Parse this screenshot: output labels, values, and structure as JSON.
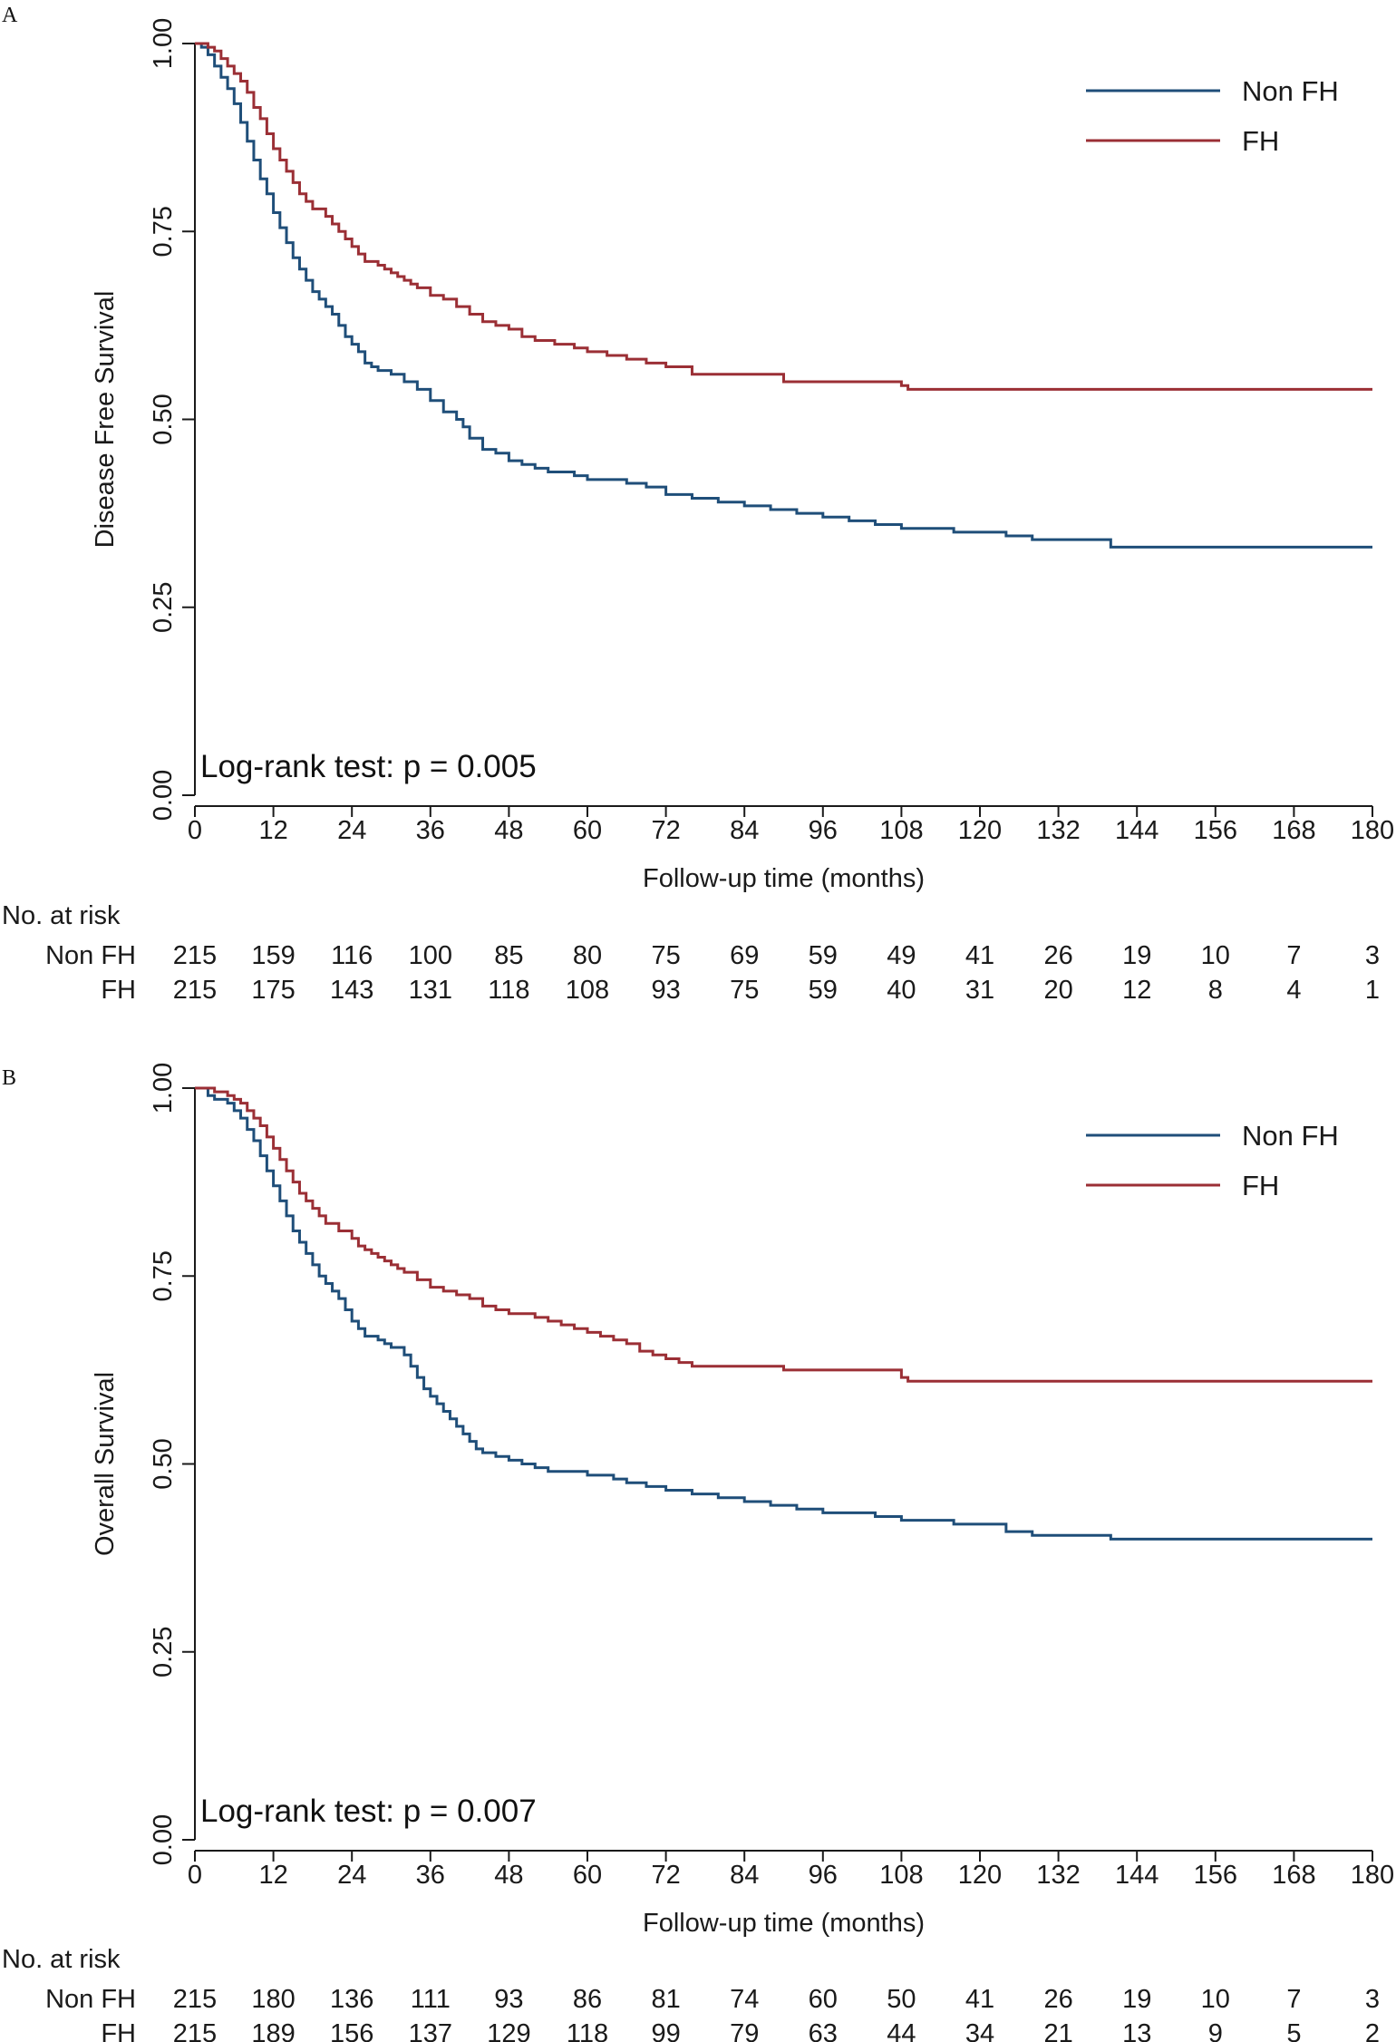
{
  "chart_data": [
    {
      "panel_label": "A",
      "type": "line",
      "subtype": "kaplan-meier",
      "ylabel": "Disease Free Survival",
      "xlabel": "Follow-up time (months)",
      "xlim": [
        0,
        180
      ],
      "ylim": [
        0,
        1
      ],
      "x_ticks": [
        "0",
        "12",
        "24",
        "36",
        "48",
        "60",
        "72",
        "84",
        "96",
        "108",
        "120",
        "132",
        "144",
        "156",
        "168",
        "180"
      ],
      "y_ticks": [
        "0.00",
        "0.25",
        "0.50",
        "0.75",
        "1.00"
      ],
      "annotation": "Log-rank test: p = 0.005",
      "legend": [
        "Non FH",
        "FH"
      ],
      "series": [
        {
          "name": "Non FH",
          "color": "#1f4e79",
          "points": [
            [
              0,
              1.0
            ],
            [
              1,
              0.995
            ],
            [
              2,
              0.985
            ],
            [
              3,
              0.97
            ],
            [
              4,
              0.955
            ],
            [
              5,
              0.94
            ],
            [
              6,
              0.92
            ],
            [
              7,
              0.895
            ],
            [
              8,
              0.87
            ],
            [
              9,
              0.845
            ],
            [
              10,
              0.82
            ],
            [
              11,
              0.8
            ],
            [
              12,
              0.775
            ],
            [
              13,
              0.755
            ],
            [
              14,
              0.735
            ],
            [
              15,
              0.715
            ],
            [
              16,
              0.7
            ],
            [
              17,
              0.685
            ],
            [
              18,
              0.67
            ],
            [
              19,
              0.66
            ],
            [
              20,
              0.65
            ],
            [
              21,
              0.64
            ],
            [
              22,
              0.625
            ],
            [
              23,
              0.61
            ],
            [
              24,
              0.6
            ],
            [
              25,
              0.59
            ],
            [
              26,
              0.575
            ],
            [
              27,
              0.57
            ],
            [
              28,
              0.565
            ],
            [
              30,
              0.56
            ],
            [
              32,
              0.55
            ],
            [
              34,
              0.54
            ],
            [
              36,
              0.525
            ],
            [
              38,
              0.51
            ],
            [
              40,
              0.5
            ],
            [
              41,
              0.49
            ],
            [
              42,
              0.475
            ],
            [
              44,
              0.46
            ],
            [
              46,
              0.455
            ],
            [
              48,
              0.445
            ],
            [
              50,
              0.44
            ],
            [
              52,
              0.435
            ],
            [
              54,
              0.43
            ],
            [
              58,
              0.425
            ],
            [
              60,
              0.42
            ],
            [
              66,
              0.415
            ],
            [
              69,
              0.41
            ],
            [
              72,
              0.4
            ],
            [
              76,
              0.395
            ],
            [
              80,
              0.39
            ],
            [
              84,
              0.385
            ],
            [
              88,
              0.38
            ],
            [
              92,
              0.375
            ],
            [
              96,
              0.37
            ],
            [
              100,
              0.365
            ],
            [
              104,
              0.36
            ],
            [
              108,
              0.355
            ],
            [
              116,
              0.35
            ],
            [
              124,
              0.345
            ],
            [
              128,
              0.34
            ],
            [
              140,
              0.33
            ],
            [
              180,
              0.33
            ]
          ]
        },
        {
          "name": "FH",
          "color": "#9b2f35",
          "points": [
            [
              0,
              1.0
            ],
            [
              2,
              0.995
            ],
            [
              3,
              0.99
            ],
            [
              4,
              0.98
            ],
            [
              5,
              0.97
            ],
            [
              6,
              0.96
            ],
            [
              7,
              0.95
            ],
            [
              8,
              0.935
            ],
            [
              9,
              0.915
            ],
            [
              10,
              0.9
            ],
            [
              11,
              0.88
            ],
            [
              12,
              0.86
            ],
            [
              13,
              0.845
            ],
            [
              14,
              0.83
            ],
            [
              15,
              0.815
            ],
            [
              16,
              0.8
            ],
            [
              17,
              0.79
            ],
            [
              18,
              0.78
            ],
            [
              20,
              0.77
            ],
            [
              21,
              0.76
            ],
            [
              22,
              0.75
            ],
            [
              23,
              0.74
            ],
            [
              24,
              0.73
            ],
            [
              25,
              0.72
            ],
            [
              26,
              0.71
            ],
            [
              28,
              0.705
            ],
            [
              29,
              0.7
            ],
            [
              30,
              0.695
            ],
            [
              31,
              0.69
            ],
            [
              32,
              0.685
            ],
            [
              33,
              0.68
            ],
            [
              34,
              0.675
            ],
            [
              36,
              0.665
            ],
            [
              38,
              0.66
            ],
            [
              40,
              0.65
            ],
            [
              42,
              0.64
            ],
            [
              44,
              0.63
            ],
            [
              46,
              0.625
            ],
            [
              48,
              0.62
            ],
            [
              50,
              0.61
            ],
            [
              52,
              0.605
            ],
            [
              55,
              0.6
            ],
            [
              58,
              0.595
            ],
            [
              60,
              0.59
            ],
            [
              63,
              0.585
            ],
            [
              66,
              0.58
            ],
            [
              69,
              0.575
            ],
            [
              72,
              0.57
            ],
            [
              76,
              0.56
            ],
            [
              90,
              0.55
            ],
            [
              108,
              0.545
            ],
            [
              109,
              0.54
            ],
            [
              180,
              0.54
            ]
          ]
        }
      ],
      "risk_table": {
        "title": "No. at risk",
        "rows": [
          {
            "label": "Non FH",
            "values": [
              "215",
              "159",
              "116",
              "100",
              "85",
              "80",
              "75",
              "69",
              "59",
              "49",
              "41",
              "26",
              "19",
              "10",
              "7",
              "3"
            ]
          },
          {
            "label": "FH",
            "values": [
              "215",
              "175",
              "143",
              "131",
              "118",
              "108",
              "93",
              "75",
              "59",
              "40",
              "31",
              "20",
              "12",
              "8",
              "4",
              "1"
            ]
          }
        ]
      }
    },
    {
      "panel_label": "B",
      "type": "line",
      "subtype": "kaplan-meier",
      "ylabel": "Overall Survival",
      "xlabel": "Follow-up time (months)",
      "xlim": [
        0,
        180
      ],
      "ylim": [
        0,
        1
      ],
      "x_ticks": [
        "0",
        "12",
        "24",
        "36",
        "48",
        "60",
        "72",
        "84",
        "96",
        "108",
        "120",
        "132",
        "144",
        "156",
        "168",
        "180"
      ],
      "y_ticks": [
        "0.00",
        "0.25",
        "0.50",
        "0.75",
        "1.00"
      ],
      "annotation": "Log-rank test: p = 0.007",
      "legend": [
        "Non FH",
        "FH"
      ],
      "series": [
        {
          "name": "Non FH",
          "color": "#1f4e79",
          "points": [
            [
              0,
              1.0
            ],
            [
              2,
              0.99
            ],
            [
              3,
              0.985
            ],
            [
              5,
              0.98
            ],
            [
              6,
              0.97
            ],
            [
              7,
              0.96
            ],
            [
              8,
              0.945
            ],
            [
              9,
              0.93
            ],
            [
              10,
              0.91
            ],
            [
              11,
              0.89
            ],
            [
              12,
              0.87
            ],
            [
              13,
              0.85
            ],
            [
              14,
              0.83
            ],
            [
              15,
              0.81
            ],
            [
              16,
              0.795
            ],
            [
              17,
              0.78
            ],
            [
              18,
              0.765
            ],
            [
              19,
              0.75
            ],
            [
              20,
              0.74
            ],
            [
              21,
              0.73
            ],
            [
              22,
              0.72
            ],
            [
              23,
              0.705
            ],
            [
              24,
              0.69
            ],
            [
              25,
              0.68
            ],
            [
              26,
              0.67
            ],
            [
              28,
              0.665
            ],
            [
              29,
              0.66
            ],
            [
              30,
              0.655
            ],
            [
              32,
              0.645
            ],
            [
              33,
              0.63
            ],
            [
              34,
              0.615
            ],
            [
              35,
              0.6
            ],
            [
              36,
              0.59
            ],
            [
              37,
              0.58
            ],
            [
              38,
              0.57
            ],
            [
              39,
              0.56
            ],
            [
              40,
              0.55
            ],
            [
              41,
              0.54
            ],
            [
              42,
              0.53
            ],
            [
              43,
              0.52
            ],
            [
              44,
              0.515
            ],
            [
              46,
              0.51
            ],
            [
              48,
              0.505
            ],
            [
              50,
              0.5
            ],
            [
              52,
              0.495
            ],
            [
              54,
              0.49
            ],
            [
              60,
              0.485
            ],
            [
              64,
              0.48
            ],
            [
              66,
              0.475
            ],
            [
              69,
              0.47
            ],
            [
              72,
              0.465
            ],
            [
              76,
              0.46
            ],
            [
              80,
              0.455
            ],
            [
              84,
              0.45
            ],
            [
              88,
              0.445
            ],
            [
              92,
              0.44
            ],
            [
              96,
              0.435
            ],
            [
              104,
              0.43
            ],
            [
              108,
              0.425
            ],
            [
              116,
              0.42
            ],
            [
              124,
              0.41
            ],
            [
              128,
              0.405
            ],
            [
              140,
              0.4
            ],
            [
              180,
              0.4
            ]
          ]
        },
        {
          "name": "FH",
          "color": "#9b2f35",
          "points": [
            [
              0,
              1.0
            ],
            [
              3,
              0.995
            ],
            [
              5,
              0.99
            ],
            [
              6,
              0.985
            ],
            [
              7,
              0.98
            ],
            [
              8,
              0.97
            ],
            [
              9,
              0.96
            ],
            [
              10,
              0.95
            ],
            [
              11,
              0.935
            ],
            [
              12,
              0.92
            ],
            [
              13,
              0.905
            ],
            [
              14,
              0.89
            ],
            [
              15,
              0.875
            ],
            [
              16,
              0.86
            ],
            [
              17,
              0.85
            ],
            [
              18,
              0.84
            ],
            [
              19,
              0.83
            ],
            [
              20,
              0.82
            ],
            [
              22,
              0.81
            ],
            [
              24,
              0.8
            ],
            [
              25,
              0.79
            ],
            [
              26,
              0.785
            ],
            [
              27,
              0.78
            ],
            [
              28,
              0.775
            ],
            [
              29,
              0.77
            ],
            [
              30,
              0.765
            ],
            [
              31,
              0.76
            ],
            [
              32,
              0.755
            ],
            [
              34,
              0.745
            ],
            [
              36,
              0.735
            ],
            [
              38,
              0.73
            ],
            [
              40,
              0.725
            ],
            [
              42,
              0.72
            ],
            [
              44,
              0.71
            ],
            [
              46,
              0.705
            ],
            [
              48,
              0.7
            ],
            [
              52,
              0.695
            ],
            [
              54,
              0.69
            ],
            [
              56,
              0.685
            ],
            [
              58,
              0.68
            ],
            [
              60,
              0.675
            ],
            [
              62,
              0.67
            ],
            [
              64,
              0.665
            ],
            [
              66,
              0.66
            ],
            [
              68,
              0.65
            ],
            [
              70,
              0.645
            ],
            [
              72,
              0.64
            ],
            [
              74,
              0.635
            ],
            [
              76,
              0.63
            ],
            [
              90,
              0.625
            ],
            [
              108,
              0.615
            ],
            [
              109,
              0.61
            ],
            [
              180,
              0.61
            ]
          ]
        }
      ],
      "risk_table": {
        "title": "No. at risk",
        "rows": [
          {
            "label": "Non FH",
            "values": [
              "215",
              "180",
              "136",
              "111",
              "93",
              "86",
              "81",
              "74",
              "60",
              "50",
              "41",
              "26",
              "19",
              "10",
              "7",
              "3"
            ]
          },
          {
            "label": "FH",
            "values": [
              "215",
              "189",
              "156",
              "137",
              "129",
              "118",
              "99",
              "79",
              "63",
              "44",
              "34",
              "21",
              "13",
              "9",
              "5",
              "2"
            ]
          }
        ]
      }
    }
  ]
}
